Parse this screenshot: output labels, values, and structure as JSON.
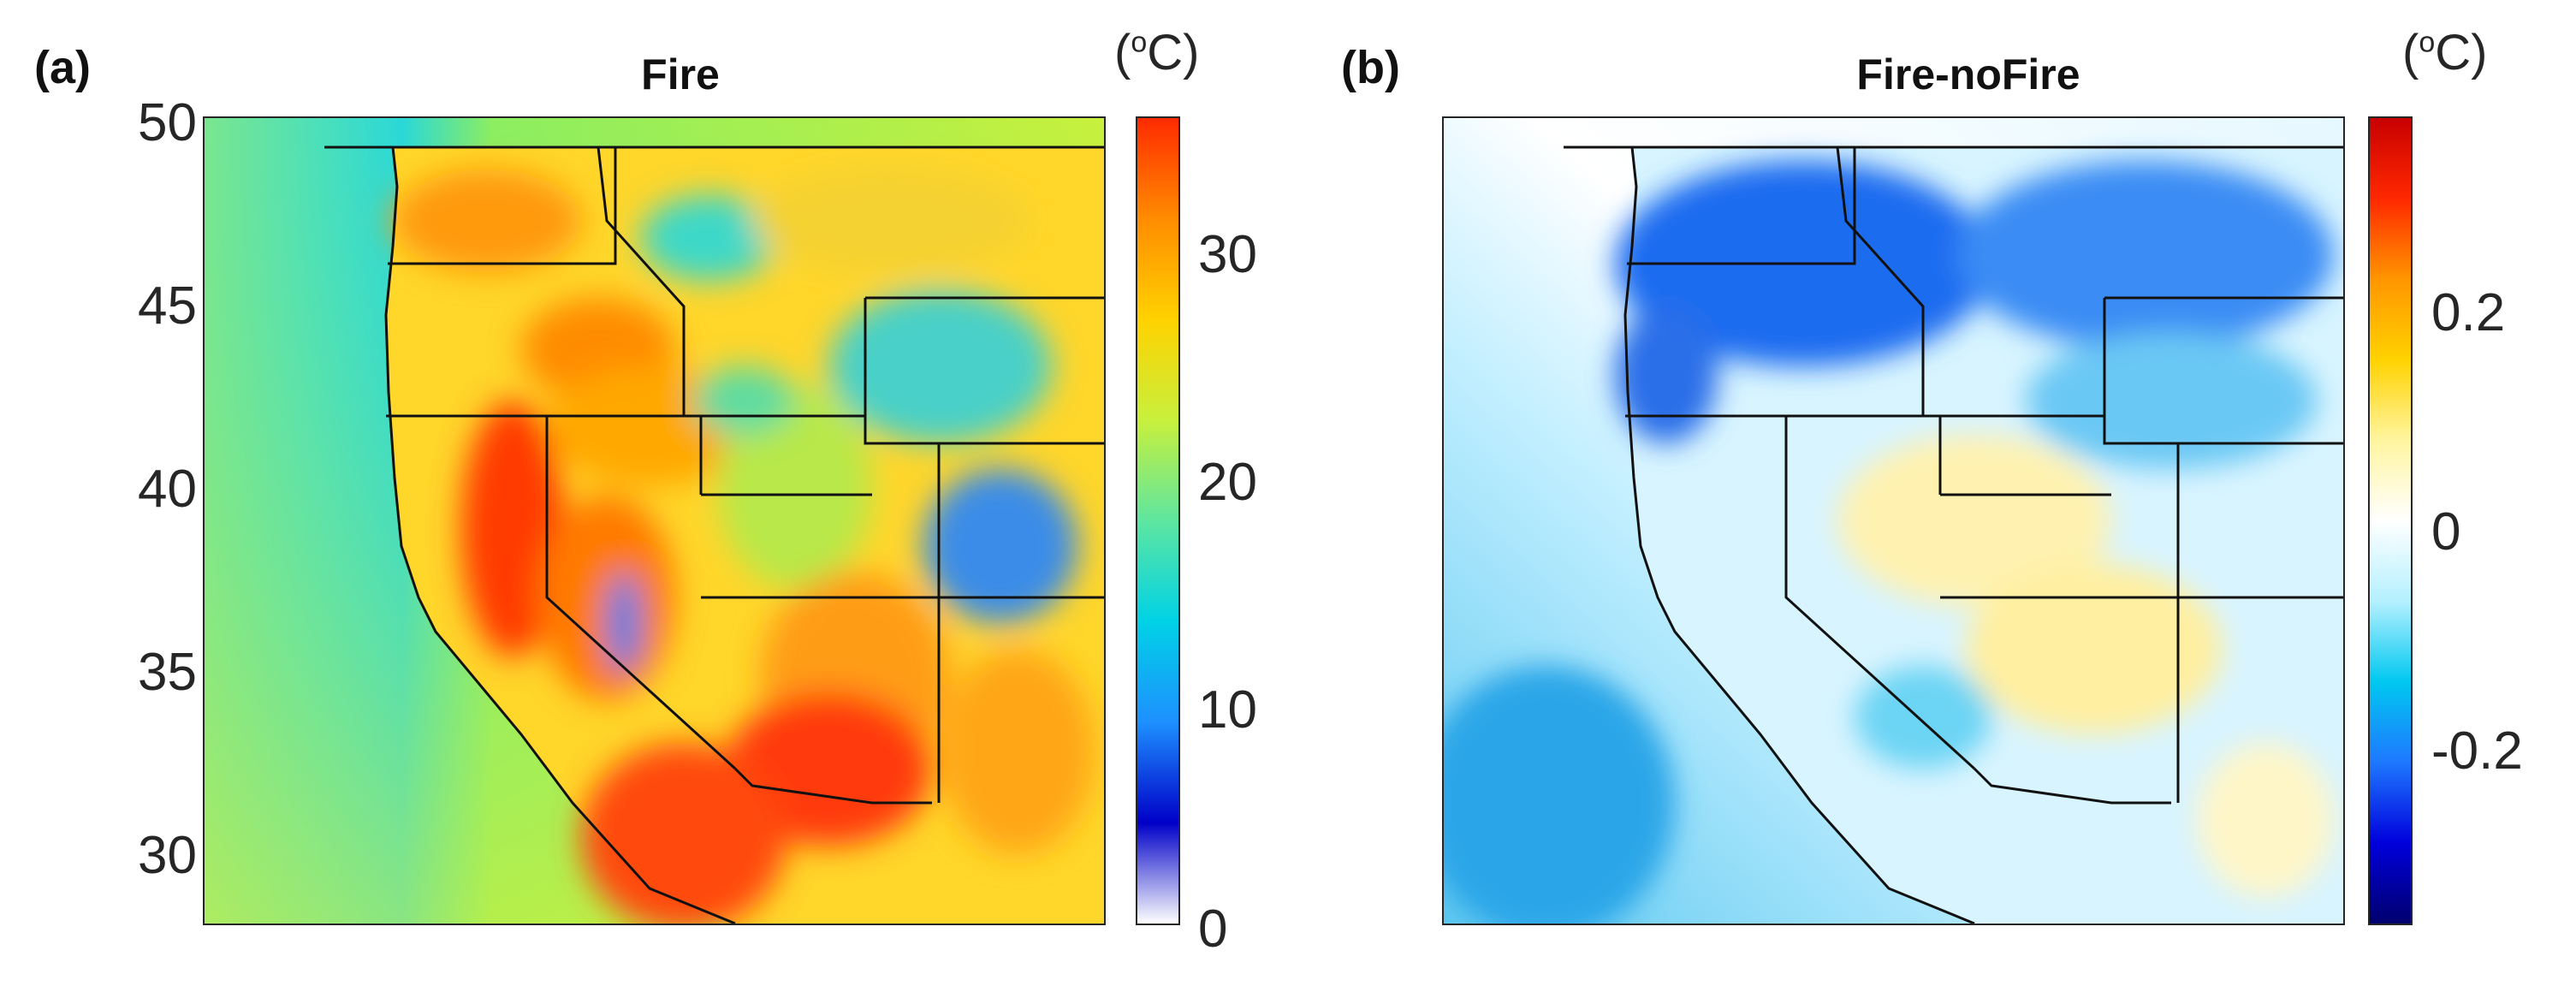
{
  "panels": [
    {
      "letter": "(a)",
      "title": "Fire",
      "unit_base": "(",
      "unit_sup": "o",
      "unit_rest": "C)",
      "lat_ticks": [
        "50",
        "45",
        "40",
        "35",
        "30"
      ],
      "colorbar": {
        "ticks": [
          "30",
          "20",
          "10",
          "0"
        ],
        "range": [
          0,
          35
        ],
        "colors": [
          "#ffffff",
          "#0000c8",
          "#1e90ff",
          "#00d2e6",
          "#5ee6a0",
          "#c8f03c",
          "#ffd200",
          "#ff8c00",
          "#ff2a00"
        ]
      }
    },
    {
      "letter": "(b)",
      "title": "Fire-noFire",
      "unit_base": "(",
      "unit_sup": "o",
      "unit_rest": "C)",
      "lat_ticks": [],
      "colorbar": {
        "ticks": [
          "0.2",
          "0",
          "-0.2"
        ],
        "range": [
          -0.33,
          0.33
        ],
        "colors": [
          "#00006e",
          "#0000dc",
          "#1e78ff",
          "#00c8f0",
          "#b4f0ff",
          "#ffffff",
          "#fff5a0",
          "#ffd200",
          "#ff9600",
          "#ff2800",
          "#c80000"
        ]
      }
    }
  ]
}
